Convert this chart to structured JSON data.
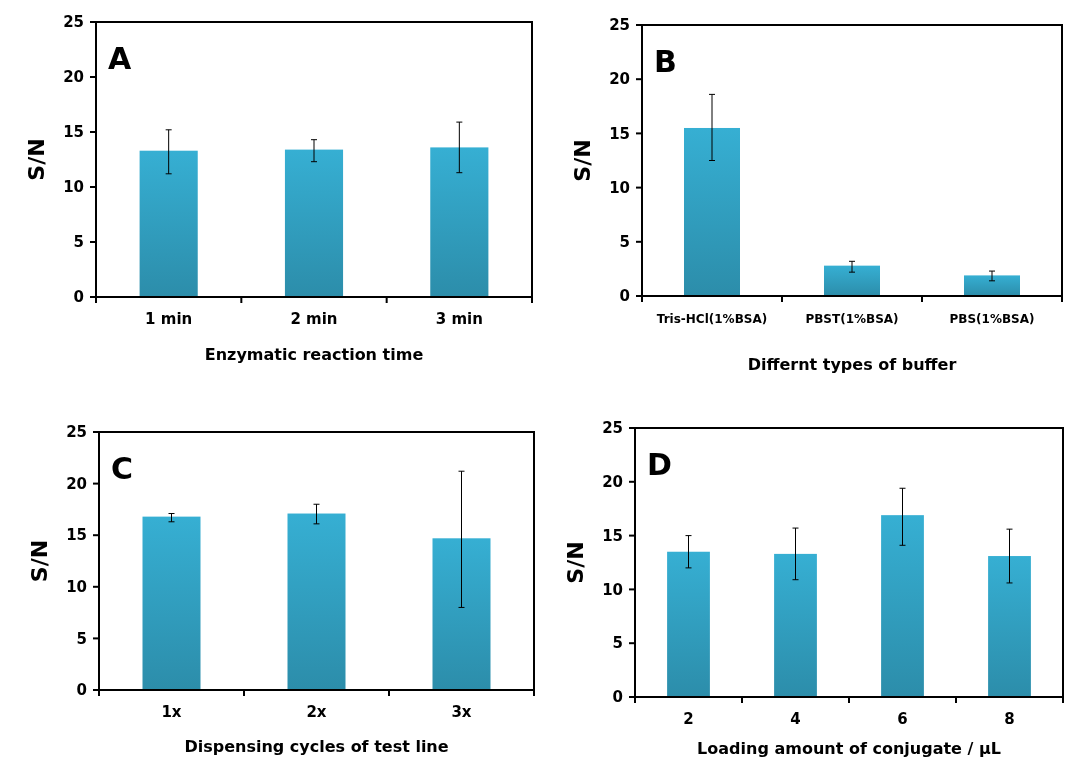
{
  "chart_data": [
    {
      "type": "bar",
      "categories": [
        "1 min",
        "2 min",
        "3 min"
      ],
      "values": [
        13.3,
        13.4,
        13.6
      ],
      "errors": [
        [
          11.2,
          15.2
        ],
        [
          12.3,
          14.3
        ],
        [
          11.3,
          15.9
        ]
      ],
      "color": "#36afd3",
      "ylim": [
        0,
        25
      ],
      "yticks": [
        0,
        5,
        10,
        15,
        20,
        25
      ],
      "ylabel": "S/N",
      "xlabel": "Enzymatic reaction time",
      "annotations": [
        "A"
      ]
    },
    {
      "type": "bar",
      "categories": [
        "Tris-HCl(1%BSA)",
        "PBST(1%BSA)",
        "PBS(1%BSA)"
      ],
      "values": [
        15.5,
        2.8,
        1.9
      ],
      "errors": [
        [
          12.5,
          18.6
        ],
        [
          2.2,
          3.2
        ],
        [
          1.4,
          2.3
        ]
      ],
      "color": "#36afd3",
      "ylim": [
        0,
        25
      ],
      "yticks": [
        0,
        5,
        10,
        15,
        20,
        25
      ],
      "ylabel": "S/N",
      "xlabel": "Differnt types of buffer",
      "annotations": [
        "B"
      ]
    },
    {
      "type": "bar",
      "categories": [
        "1x",
        "2x",
        "3x"
      ],
      "values": [
        16.8,
        17.1,
        14.7
      ],
      "errors": [
        [
          16.3,
          17.1
        ],
        [
          16.1,
          18.0
        ],
        [
          8.0,
          21.2
        ]
      ],
      "color": "#36afd3",
      "ylim": [
        0,
        25
      ],
      "yticks": [
        0,
        5,
        10,
        15,
        20,
        25
      ],
      "ylabel": "S/N",
      "xlabel": "Dispensing cycles of test line",
      "annotations": [
        "C"
      ]
    },
    {
      "type": "bar",
      "categories": [
        "2",
        "4",
        "6",
        "8"
      ],
      "values": [
        13.5,
        13.3,
        16.9,
        13.1
      ],
      "errors": [
        [
          12.0,
          15.0
        ],
        [
          10.9,
          15.7
        ],
        [
          14.1,
          19.4
        ],
        [
          10.6,
          15.6
        ]
      ],
      "color": "#36afd3",
      "ylim": [
        0,
        25
      ],
      "yticks": [
        0,
        5,
        10,
        15,
        20,
        25
      ],
      "ylabel": "S/N",
      "xlabel": "Loading amount of conjugate / μL",
      "annotations": [
        "D"
      ]
    }
  ]
}
